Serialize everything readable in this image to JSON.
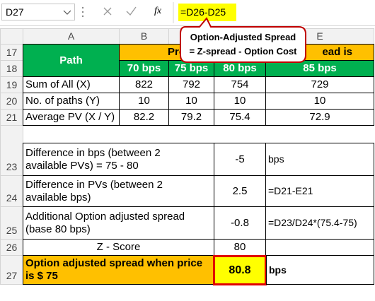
{
  "name_box": "D27",
  "fx": "fx",
  "formula": "=D26-D25",
  "column_headers": [
    "A",
    "B",
    "E"
  ],
  "row_headers": [
    "17",
    "18",
    "19",
    "20",
    "21",
    "23",
    "24",
    "25",
    "26",
    "27"
  ],
  "callout": [
    "Option-Adjusted Spread",
    "= Z-spread - Option Cost"
  ],
  "table": {
    "path": "Path",
    "present_value_fragments": [
      "Pres",
      "ead is"
    ],
    "spreads": [
      "70 bps",
      "75 bps",
      "80 bps",
      "85 bps"
    ],
    "rows": [
      [
        "Sum of All (X)",
        "822",
        "792",
        "754",
        "729"
      ],
      [
        "No. of paths (Y)",
        "10",
        "10",
        "10",
        "10"
      ],
      [
        "Average PV (X / Y)",
        "82.2",
        "79.2",
        "75.4",
        "72.9"
      ]
    ],
    "details": [
      [
        "Difference in bps (between 2 available PVs) = 75 - 80",
        "-5",
        "bps"
      ],
      [
        "Difference in PVs (between 2 available bps)",
        "2.5",
        "=D21-E21"
      ],
      [
        "Additional Option adjusted spread (base 80 bps)",
        "-0.8",
        "=D23/D24*(75.4-75)"
      ]
    ],
    "z_score": [
      "Z - Score",
      "80"
    ],
    "result": [
      "Option adjusted spread when price is $ 75",
      "80.8",
      "bps"
    ]
  }
}
